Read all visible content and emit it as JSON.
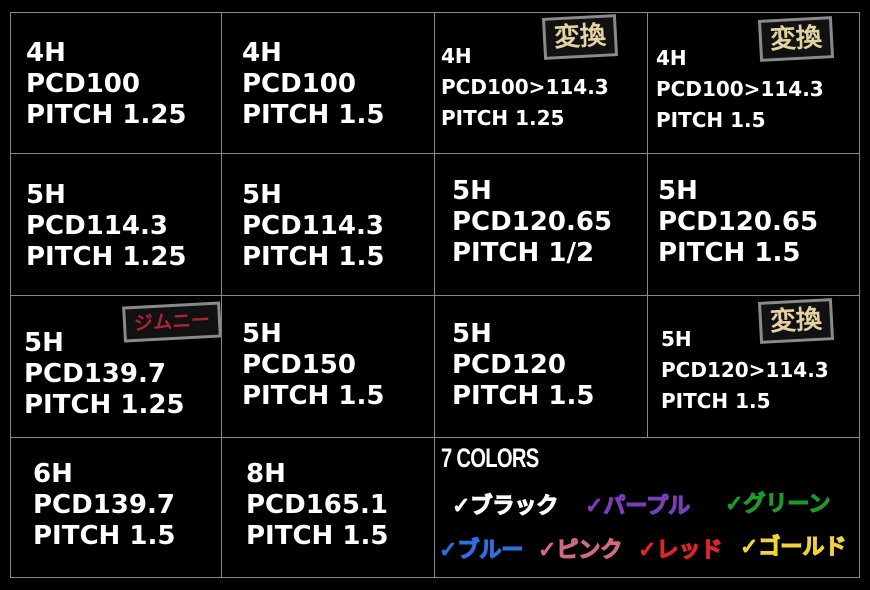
{
  "cells": [
    {
      "lines": [
        "4H",
        "PCD100",
        "PITCH 1.25"
      ]
    },
    {
      "lines": [
        "4H",
        "PCD100",
        "PITCH 1.5"
      ]
    },
    {
      "lines": [
        "4H",
        "PCD100>114.3",
        "PITCH 1.25"
      ],
      "badge": "変換"
    },
    {
      "lines": [
        "4H",
        "PCD100>114.3",
        "PITCH 1.5"
      ],
      "badge": "変換"
    },
    {
      "lines": [
        "5H",
        "PCD114.3",
        "PITCH 1.25"
      ]
    },
    {
      "lines": [
        "5H",
        "PCD114.3",
        "PITCH 1.5"
      ]
    },
    {
      "lines": [
        "5H",
        "PCD120.65",
        "PITCH 1/2"
      ]
    },
    {
      "lines": [
        "5H",
        "PCD120.65",
        "PITCH 1.5"
      ]
    },
    {
      "lines": [
        "5H",
        "PCD139.7",
        "PITCH 1.25"
      ],
      "badge": "ジムニー"
    },
    {
      "lines": [
        "5H",
        "PCD150",
        "PITCH 1.5"
      ]
    },
    {
      "lines": [
        "5H",
        "PCD120",
        "PITCH 1.5"
      ]
    },
    {
      "lines": [
        "5H",
        "PCD120>114.3",
        "PITCH 1.5"
      ],
      "badge": "変換"
    },
    {
      "lines": [
        "6H",
        "PCD139.7",
        "PITCH 1.5"
      ]
    },
    {
      "lines": [
        "8H",
        "PCD165.1",
        "PITCH 1.5"
      ]
    }
  ],
  "colors": {
    "title": "7 COLORS",
    "items": [
      {
        "label": "✓ブラック",
        "color": "#ffffff"
      },
      {
        "label": "✓パープル",
        "color": "#7a3fb8"
      },
      {
        "label": "✓グリーン",
        "color": "#1f9a2a"
      },
      {
        "label": "✓ブルー",
        "color": "#2f6fe0"
      },
      {
        "label": "✓ピンク",
        "color": "#d06a80"
      },
      {
        "label": "✓レッド",
        "color": "#e0242a"
      },
      {
        "label": "✓ゴールド",
        "color": "#f0d23a"
      }
    ]
  }
}
